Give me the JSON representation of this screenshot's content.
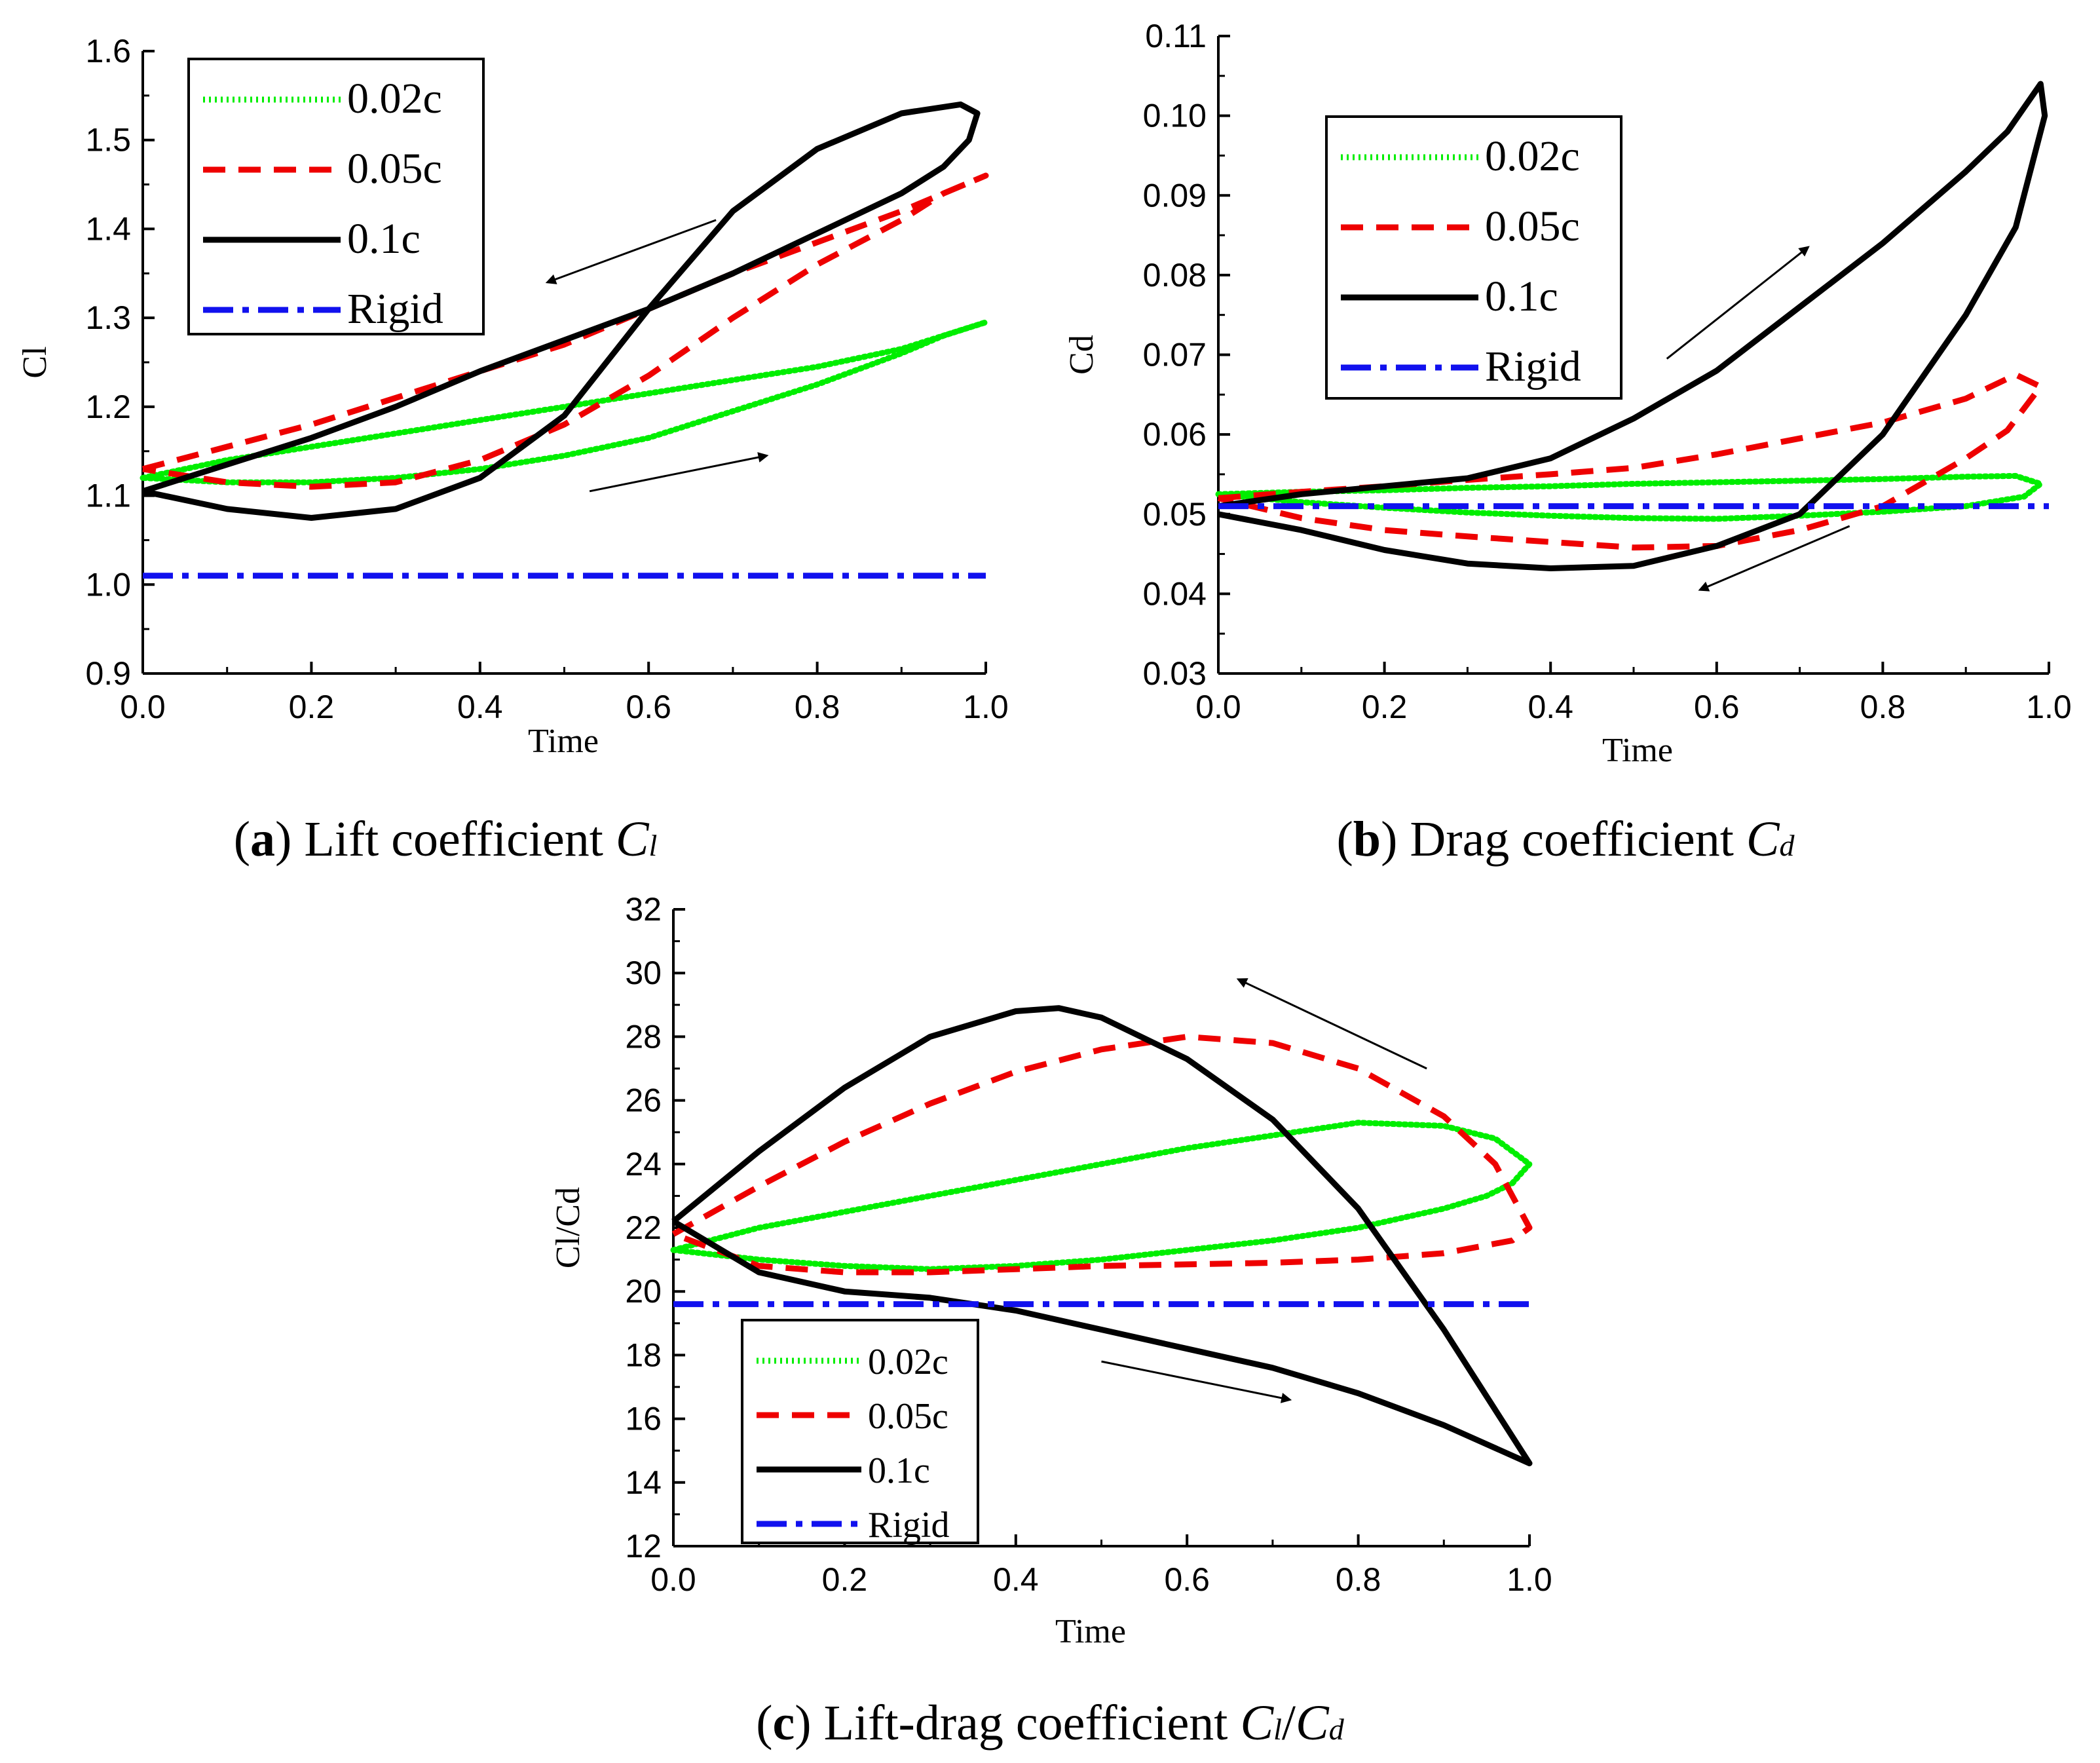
{
  "chart_data": [
    {
      "id": "a",
      "type": "line",
      "caption": {
        "letter": "a",
        "text": "Lift coefficient ",
        "symbol": "C",
        "sub": "l"
      },
      "xlabel": "Time",
      "ylabel": "Cl",
      "xlim": [
        0,
        1
      ],
      "ylim": [
        0.9,
        1.6
      ],
      "xticks": [
        "0.0",
        "0.2",
        "0.4",
        "0.6",
        "0.8",
        "1.0"
      ],
      "yticks": [
        "0.9",
        "1.0",
        "1.1",
        "1.2",
        "1.3",
        "1.4",
        "1.5",
        "1.6"
      ],
      "legend_position": "top-left",
      "series": [
        {
          "name": "0.02c",
          "color": "#00ee00",
          "style": "dotted",
          "x": [
            0,
            0.1,
            0.2,
            0.3,
            0.4,
            0.5,
            0.6,
            0.7,
            0.8,
            0.9,
            1.0,
            0.95,
            0.9,
            0.8,
            0.7,
            0.6,
            0.5,
            0.4,
            0.3,
            0.2,
            0.1,
            0
          ],
          "y": [
            1.12,
            1.14,
            1.155,
            1.17,
            1.185,
            1.2,
            1.215,
            1.23,
            1.245,
            1.265,
            1.295,
            1.28,
            1.26,
            1.225,
            1.195,
            1.165,
            1.145,
            1.13,
            1.12,
            1.115,
            1.115,
            1.12
          ]
        },
        {
          "name": "0.05c",
          "color": "#ee0000",
          "style": "dashed",
          "x": [
            0,
            0.1,
            0.2,
            0.3,
            0.4,
            0.5,
            0.6,
            0.7,
            0.8,
            0.9,
            1.0,
            0.95,
            0.9,
            0.8,
            0.7,
            0.6,
            0.5,
            0.4,
            0.3,
            0.2,
            0.1,
            0
          ],
          "y": [
            1.13,
            1.155,
            1.18,
            1.21,
            1.24,
            1.27,
            1.31,
            1.35,
            1.385,
            1.42,
            1.46,
            1.44,
            1.41,
            1.36,
            1.3,
            1.235,
            1.18,
            1.14,
            1.115,
            1.11,
            1.115,
            1.13
          ]
        },
        {
          "name": "0.1c",
          "color": "#000000",
          "style": "solid",
          "x": [
            0,
            0.1,
            0.2,
            0.3,
            0.4,
            0.5,
            0.6,
            0.7,
            0.8,
            0.9,
            0.95,
            0.98,
            0.99,
            0.97,
            0.9,
            0.8,
            0.7,
            0.6,
            0.5,
            0.4,
            0.3,
            0.2,
            0.1,
            0
          ],
          "y": [
            1.105,
            1.135,
            1.165,
            1.2,
            1.24,
            1.275,
            1.31,
            1.35,
            1.395,
            1.44,
            1.47,
            1.5,
            1.53,
            1.54,
            1.53,
            1.49,
            1.42,
            1.31,
            1.19,
            1.12,
            1.085,
            1.075,
            1.085,
            1.105
          ]
        },
        {
          "name": "Rigid",
          "color": "#1111ee",
          "style": "dashdot",
          "x": [
            0,
            1
          ],
          "y": [
            1.01,
            1.01
          ]
        }
      ],
      "arrows": [
        {
          "from": [
            0.68,
            1.41
          ],
          "to": [
            0.48,
            1.34
          ]
        },
        {
          "from": [
            0.53,
            1.105
          ],
          "to": [
            0.74,
            1.145
          ]
        }
      ]
    },
    {
      "id": "b",
      "type": "line",
      "caption": {
        "letter": "b",
        "text": "Drag coefficient ",
        "symbol": "C",
        "sub": "d"
      },
      "xlabel": "Time",
      "ylabel": "Cd",
      "xlim": [
        0,
        1
      ],
      "ylim": [
        0.03,
        0.11
      ],
      "xticks": [
        "0.0",
        "0.2",
        "0.4",
        "0.6",
        "0.8",
        "1.0"
      ],
      "yticks": [
        "0.03",
        "0.04",
        "0.05",
        "0.06",
        "0.07",
        "0.08",
        "0.09",
        "0.10",
        "0.11"
      ],
      "legend_position": "top-left",
      "series": [
        {
          "name": "0.02c",
          "color": "#00ee00",
          "style": "dotted",
          "x": [
            0,
            0.1,
            0.2,
            0.3,
            0.4,
            0.5,
            0.6,
            0.7,
            0.8,
            0.9,
            0.96,
            0.99,
            0.97,
            0.9,
            0.8,
            0.7,
            0.6,
            0.5,
            0.4,
            0.3,
            0.2,
            0.1,
            0
          ],
          "y": [
            0.0525,
            0.0528,
            0.053,
            0.0533,
            0.0535,
            0.0538,
            0.054,
            0.0542,
            0.0544,
            0.0547,
            0.0548,
            0.0538,
            0.0522,
            0.051,
            0.0503,
            0.0498,
            0.0494,
            0.0495,
            0.0498,
            0.0502,
            0.0508,
            0.0515,
            0.0525
          ]
        },
        {
          "name": "0.05c",
          "color": "#ee0000",
          "style": "dashed",
          "x": [
            0,
            0.1,
            0.2,
            0.3,
            0.4,
            0.5,
            0.6,
            0.7,
            0.8,
            0.9,
            0.96,
            0.99,
            0.95,
            0.9,
            0.8,
            0.7,
            0.6,
            0.5,
            0.4,
            0.3,
            0.2,
            0.1,
            0
          ],
          "y": [
            0.052,
            0.0528,
            0.0535,
            0.0543,
            0.055,
            0.0558,
            0.0575,
            0.0595,
            0.0615,
            0.0645,
            0.0675,
            0.066,
            0.0605,
            0.057,
            0.051,
            0.048,
            0.046,
            0.0458,
            0.0465,
            0.0472,
            0.048,
            0.0495,
            0.052
          ]
        },
        {
          "name": "0.1c",
          "color": "#000000",
          "style": "solid",
          "x": [
            0,
            0.1,
            0.2,
            0.3,
            0.4,
            0.5,
            0.6,
            0.7,
            0.8,
            0.9,
            0.95,
            0.99,
            0.995,
            0.96,
            0.9,
            0.8,
            0.7,
            0.6,
            0.5,
            0.4,
            0.3,
            0.2,
            0.1,
            0
          ],
          "y": [
            0.051,
            0.0525,
            0.0535,
            0.0545,
            0.057,
            0.062,
            0.068,
            0.076,
            0.084,
            0.093,
            0.098,
            0.104,
            0.1,
            0.086,
            0.075,
            0.06,
            0.05,
            0.046,
            0.0435,
            0.0432,
            0.0438,
            0.0455,
            0.048,
            0.05
          ]
        },
        {
          "name": "Rigid",
          "color": "#1111ee",
          "style": "dashdot",
          "x": [
            0,
            1
          ],
          "y": [
            0.051,
            0.051
          ]
        }
      ],
      "arrows": [
        {
          "from": [
            0.54,
            0.0695
          ],
          "to": [
            0.71,
            0.0835
          ]
        },
        {
          "from": [
            0.76,
            0.0485
          ],
          "to": [
            0.58,
            0.0405
          ]
        }
      ]
    },
    {
      "id": "c",
      "type": "line",
      "caption": {
        "letter": "c",
        "text": "Lift-drag coefficient ",
        "symbol": "C",
        "sub": "l",
        "symbol2": "C",
        "sub2": "d"
      },
      "xlabel": "Time",
      "ylabel": "Cl/Cd",
      "xlim": [
        0,
        1
      ],
      "ylim": [
        12,
        32
      ],
      "xticks": [
        "0.0",
        "0.2",
        "0.4",
        "0.6",
        "0.8",
        "1.0"
      ],
      "yticks": [
        "12",
        "14",
        "16",
        "18",
        "20",
        "22",
        "24",
        "26",
        "28",
        "30",
        "32"
      ],
      "legend_position": "bottom-left",
      "series": [
        {
          "name": "0.02c",
          "color": "#00ee00",
          "style": "dotted",
          "x": [
            0,
            0.1,
            0.2,
            0.3,
            0.4,
            0.5,
            0.6,
            0.7,
            0.8,
            0.9,
            0.96,
            1.0,
            0.98,
            0.95,
            0.9,
            0.8,
            0.7,
            0.6,
            0.5,
            0.4,
            0.3,
            0.2,
            0.1,
            0
          ],
          "y": [
            21.3,
            22.0,
            22.5,
            23.0,
            23.5,
            24.0,
            24.5,
            24.9,
            25.3,
            25.2,
            24.8,
            24.0,
            23.4,
            23.0,
            22.6,
            22.0,
            21.6,
            21.3,
            21.0,
            20.8,
            20.7,
            20.8,
            21.0,
            21.3
          ]
        },
        {
          "name": "0.05c",
          "color": "#ee0000",
          "style": "dashed",
          "x": [
            0,
            0.1,
            0.2,
            0.3,
            0.4,
            0.5,
            0.6,
            0.7,
            0.8,
            0.9,
            0.96,
            1.0,
            0.98,
            0.9,
            0.8,
            0.7,
            0.6,
            0.5,
            0.4,
            0.3,
            0.2,
            0.1,
            0
          ],
          "y": [
            21.8,
            23.3,
            24.7,
            25.9,
            26.9,
            27.6,
            28.0,
            27.8,
            27.0,
            25.5,
            24.0,
            22.0,
            21.6,
            21.2,
            21.0,
            20.9,
            20.85,
            20.8,
            20.7,
            20.6,
            20.6,
            20.8,
            21.8
          ]
        },
        {
          "name": "0.1c",
          "color": "#000000",
          "style": "solid",
          "x": [
            0,
            0.1,
            0.2,
            0.3,
            0.4,
            0.45,
            0.5,
            0.6,
            0.7,
            0.8,
            0.9,
            1.0,
            0.9,
            0.8,
            0.7,
            0.6,
            0.5,
            0.4,
            0.3,
            0.2,
            0.1,
            0
          ],
          "y": [
            22.2,
            24.4,
            26.4,
            28.0,
            28.8,
            28.9,
            28.6,
            27.3,
            25.4,
            22.6,
            18.8,
            14.6,
            15.8,
            16.8,
            17.6,
            18.2,
            18.8,
            19.4,
            19.8,
            20.0,
            20.6,
            22.2
          ]
        },
        {
          "name": "Rigid",
          "color": "#1111ee",
          "style": "dashdot",
          "x": [
            0,
            1
          ],
          "y": [
            19.6,
            19.6
          ]
        }
      ],
      "arrows": [
        {
          "from": [
            0.88,
            27.0
          ],
          "to": [
            0.66,
            29.8
          ]
        },
        {
          "from": [
            0.5,
            17.8
          ],
          "to": [
            0.72,
            16.6
          ]
        }
      ]
    }
  ]
}
